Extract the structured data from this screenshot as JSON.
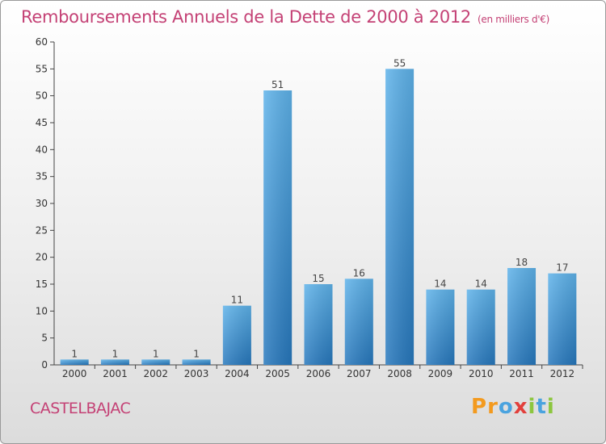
{
  "chart_data": {
    "type": "bar",
    "title": "Remboursements Annuels de la Dette de 2000 à 2012",
    "subtitle": "(en milliers d'€)",
    "categories": [
      "2000",
      "2001",
      "2002",
      "2003",
      "2004",
      "2005",
      "2006",
      "2007",
      "2008",
      "2009",
      "2010",
      "2011",
      "2012"
    ],
    "values": [
      1,
      1,
      1,
      1,
      11,
      51,
      15,
      16,
      55,
      14,
      14,
      18,
      17
    ],
    "data_labels": [
      "1",
      "1",
      "1",
      "1",
      "11",
      "51",
      "15",
      "16",
      "55",
      "14",
      "14",
      "18",
      "17"
    ],
    "ylim": [
      0,
      60
    ],
    "yticks": [
      "0",
      "5",
      "10",
      "15",
      "20",
      "25",
      "30",
      "35",
      "40",
      "45",
      "50",
      "55",
      "60"
    ],
    "grid": false,
    "xlabel": "",
    "ylabel": ""
  },
  "footer": {
    "commune": "CASTELBAJAC",
    "brand": "Proxiti"
  },
  "colors": {
    "title": "#c44175",
    "bar_light": "#5aaee7",
    "bar_dark": "#2a7fc2",
    "axis": "#444444"
  }
}
